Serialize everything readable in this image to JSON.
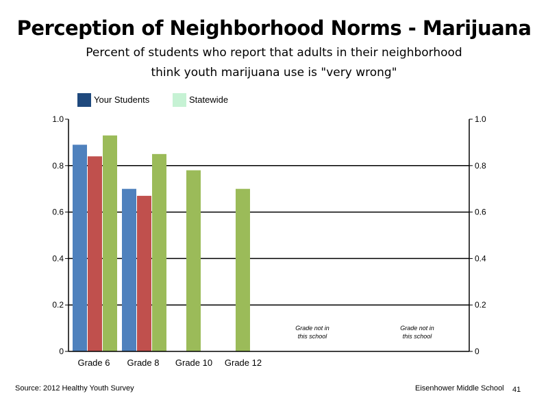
{
  "title": "Perception of Neighborhood Norms - Marijuana",
  "subtitle_line1": "Percent of students who report that adults in their neighborhood",
  "subtitle_line2": "think youth marijuana use is \"very wrong\"",
  "legend": [
    {
      "label": "Your Students",
      "color": "#1f497d"
    },
    {
      "label": "Statewide",
      "color": "#c6f2d4"
    }
  ],
  "footer": {
    "source": "Source: 2012 Healthy Youth Survey",
    "school": "Eisenhower Middle  School",
    "page": "41"
  },
  "chart_data": {
    "type": "bar",
    "categories": [
      "Grade 6",
      "Grade 8",
      "Grade 10",
      "Grade 12"
    ],
    "series": [
      {
        "color": "#4f81bd",
        "values": [
          0.89,
          0.7,
          null,
          null
        ]
      },
      {
        "color": "#c0504d",
        "values": [
          0.84,
          0.67,
          null,
          null
        ]
      },
      {
        "color": "#9bbb59",
        "values": [
          0.93,
          0.85,
          0.78,
          0.7
        ]
      }
    ],
    "yticks": [
      "0",
      "0.2",
      "0.4",
      "0.6",
      "0.8",
      "1.0"
    ],
    "ylim": [
      0,
      1.0
    ],
    "grid": true,
    "annotations": [
      {
        "line1": "Grade not in",
        "line2": "this school"
      },
      {
        "line1": "Grade not in",
        "line2": "this school"
      }
    ]
  }
}
